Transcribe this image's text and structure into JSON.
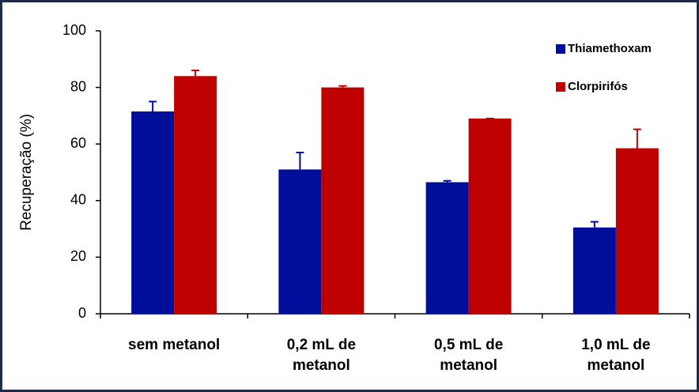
{
  "chart_data": {
    "type": "bar",
    "y_label": "Recuperação (%)",
    "categories": [
      [
        "sem metanol"
      ],
      [
        "0,2 mL de",
        "metanol"
      ],
      [
        "0,5 mL de",
        "metanol"
      ],
      [
        "1,0 mL de",
        "metanol"
      ]
    ],
    "series": [
      {
        "name": "Thiamethoxam",
        "color": "#000f99",
        "values": [
          71.5,
          51,
          46.5,
          30.5
        ],
        "errors": [
          3.5,
          6,
          0.5,
          2
        ]
      },
      {
        "name": "Clorpirifós",
        "color": "#bf0000",
        "values": [
          84,
          80,
          69,
          58.5
        ],
        "errors": [
          2,
          0.5,
          0,
          6.7
        ]
      }
    ],
    "ylim": [
      0,
      100
    ],
    "yticks": [
      0,
      20,
      40,
      60,
      80,
      100
    ],
    "grid": false,
    "legend": "top-right"
  }
}
